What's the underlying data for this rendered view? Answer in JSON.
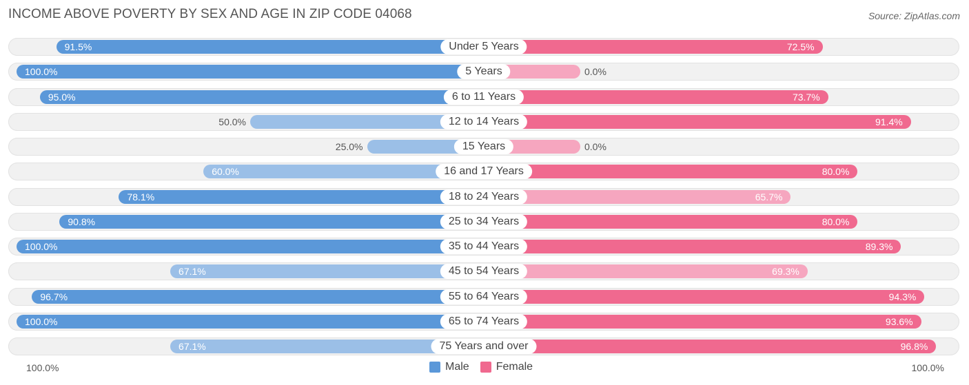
{
  "chart_data": {
    "type": "bar",
    "orientation": "horizontal-diverging",
    "title": "INCOME ABOVE POVERTY BY SEX AND AGE IN ZIP CODE 04068",
    "source": "Source: ZipAtlas.com",
    "categories": [
      "Under 5 Years",
      "5 Years",
      "6 to 11 Years",
      "12 to 14 Years",
      "15 Years",
      "16 and 17 Years",
      "18 to 24 Years",
      "25 to 34 Years",
      "35 to 44 Years",
      "45 to 54 Years",
      "55 to 64 Years",
      "65 to 74 Years",
      "75 Years and over"
    ],
    "series": [
      {
        "name": "Male",
        "values": [
          91.5,
          100.0,
          95.0,
          50.0,
          25.0,
          60.0,
          78.1,
          90.8,
          100.0,
          67.1,
          96.7,
          100.0,
          67.1
        ],
        "labels": [
          "91.5%",
          "100.0%",
          "95.0%",
          "50.0%",
          "25.0%",
          "60.0%",
          "78.1%",
          "90.8%",
          "100.0%",
          "67.1%",
          "96.7%",
          "100.0%",
          "67.1%"
        ]
      },
      {
        "name": "Female",
        "values": [
          72.5,
          0.0,
          73.7,
          91.4,
          0.0,
          80.0,
          65.7,
          80.0,
          89.3,
          69.3,
          94.3,
          93.6,
          96.8
        ],
        "labels": [
          "72.5%",
          "0.0%",
          "73.7%",
          "91.4%",
          "0.0%",
          "80.0%",
          "65.7%",
          "80.0%",
          "89.3%",
          "69.3%",
          "94.3%",
          "93.6%",
          "96.8%"
        ]
      }
    ],
    "axis_left_label": "100.0%",
    "axis_right_label": "100.0%",
    "xlim": [
      0,
      100
    ],
    "legend": {
      "position": "bottom-center",
      "items": [
        "Male",
        "Female"
      ]
    },
    "colors": {
      "male": "#5b98d9",
      "male_light": "#9bbfe7",
      "female": "#f0698f",
      "female_light": "#f6a6bf"
    }
  }
}
